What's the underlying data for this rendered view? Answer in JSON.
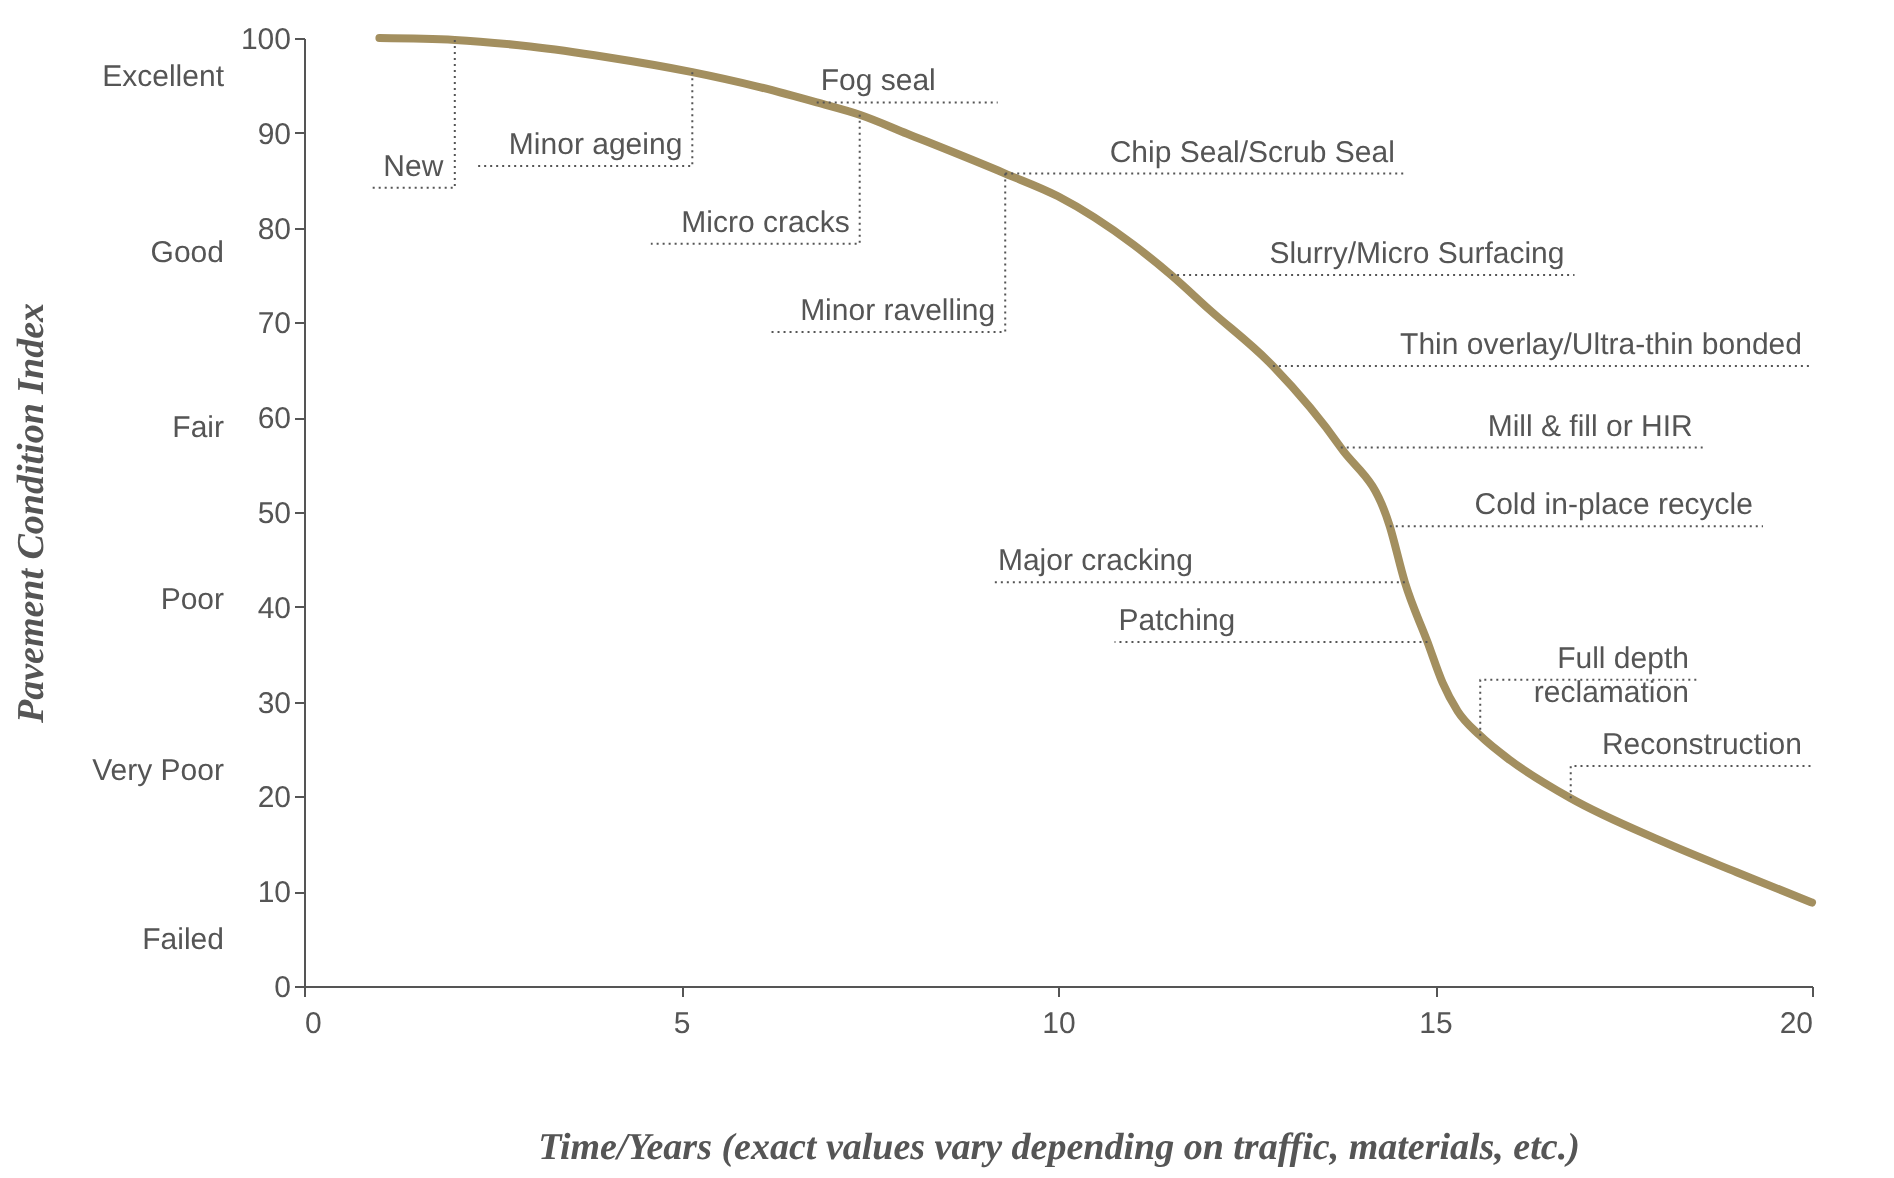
{
  "chart_data": {
    "type": "line",
    "xlabel": "Time/Years (exact values vary depending on traffic, materials, etc.)",
    "ylabel": "Pavement Condition Index",
    "x": [
      1,
      2,
      3,
      4,
      5.15,
      6,
      6.8,
      7.37,
      8,
      9.3,
      10,
      11,
      11.5,
      12,
      12.85,
      13.75,
      14.4,
      14.6,
      14.9,
      15.1,
      15.3,
      15.6,
      16,
      16.8,
      18,
      19,
      20
    ],
    "series": [
      {
        "color": "#a38f5f",
        "values": [
          100,
          99.8,
          99.1,
          98,
          96.4,
          94.9,
          93.2,
          91.9,
          89.9,
          85.7,
          83.3,
          78.2,
          75,
          71.4,
          65.4,
          56.8,
          48.5,
          42.6,
          36.3,
          32,
          29,
          26.4,
          23.8,
          19.8,
          15.3,
          12,
          8.8
        ]
      }
    ],
    "xlim": [
      0,
      20
    ],
    "ylim": [
      0,
      100
    ],
    "xticks": [
      0,
      5,
      10,
      15,
      20
    ],
    "yticks": [
      0,
      10,
      20,
      30,
      40,
      50,
      60,
      70,
      80,
      90,
      100
    ],
    "grid": false,
    "marker": "none",
    "line_style": "solid",
    "annotations": [
      {
        "text": "New",
        "x": 2,
        "y": 99.8
      },
      {
        "text": "Minor ageing",
        "x": 5.15,
        "y": 96.4
      },
      {
        "text": "Fog seal",
        "x": 6.8,
        "y": 93.2
      },
      {
        "text": "Micro cracks",
        "x": 7.37,
        "y": 91.9
      },
      {
        "text": "Minor ravelling",
        "x": 9.3,
        "y": 85.7
      },
      {
        "text": "Chip Seal/Scrub Seal",
        "x": 9.3,
        "y": 85.7
      },
      {
        "text": "Slurry/Micro Surfacing",
        "x": 11.5,
        "y": 75
      },
      {
        "text": "Thin overlay/Ultra-thin bonded",
        "x": 12.85,
        "y": 65.4
      },
      {
        "text": "Mill & fill or HIR",
        "x": 13.75,
        "y": 56.8
      },
      {
        "text": "Cold in-place recycle",
        "x": 14.4,
        "y": 48.5
      },
      {
        "text": "Major cracking",
        "x": 14.6,
        "y": 42.6
      },
      {
        "text": "Patching",
        "x": 14.9,
        "y": 36.3
      },
      {
        "text": "Full depth\nreclamation",
        "x": 15.6,
        "y": 26.4
      },
      {
        "text": "Reconstruction",
        "x": 16.8,
        "y": 19.8
      },
      "Excellent",
      "Good",
      "Fair",
      "Poor",
      "Very Poor",
      "Failed"
    ]
  }
}
